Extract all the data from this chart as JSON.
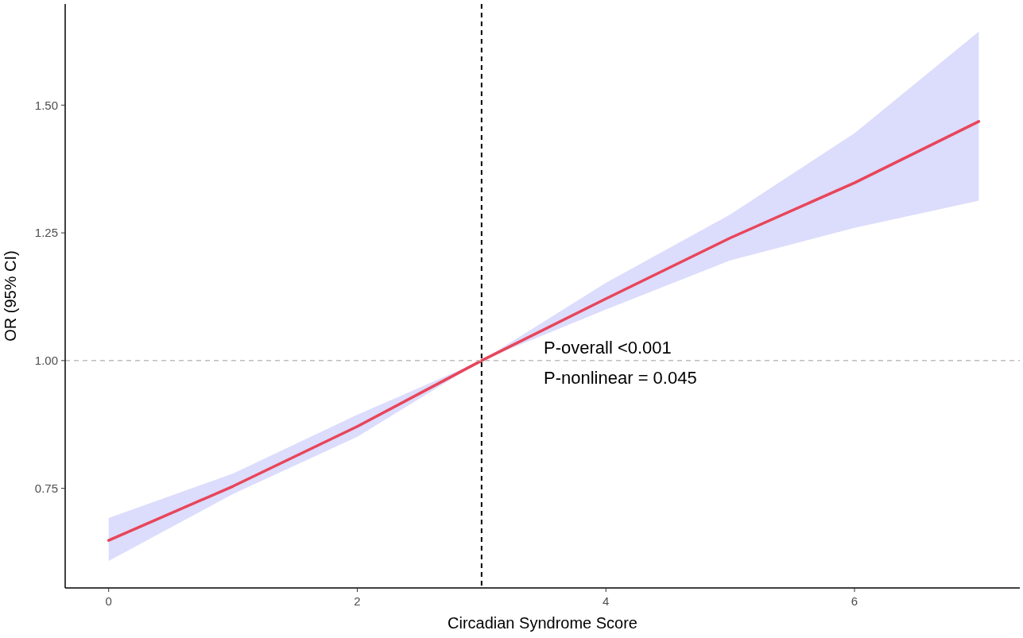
{
  "chart_data": {
    "type": "line",
    "xlabel": "Circadian Syndrome Score",
    "ylabel": "OR (95% CI)",
    "x": [
      0,
      1,
      2,
      3,
      4,
      5,
      6,
      7
    ],
    "series": [
      {
        "color": "#e8455a",
        "values": [
          0.648,
          0.754,
          0.871,
          1.0,
          1.121,
          1.24,
          1.348,
          1.468
        ],
        "lower": [
          0.608,
          0.739,
          0.851,
          1.0,
          1.1,
          1.196,
          1.26,
          1.313
        ],
        "upper": [
          0.692,
          0.779,
          0.894,
          1.0,
          1.152,
          1.286,
          1.445,
          1.644
        ]
      }
    ],
    "xlim": [
      -0.35,
      7.33
    ],
    "ylim": [
      0.555,
      1.698
    ],
    "xticks": [
      0,
      2,
      4,
      6
    ],
    "yticks": [
      {
        "value": 0.75,
        "label": "0.75"
      },
      {
        "value": 1,
        "label": "1.00"
      },
      {
        "value": 1.25,
        "label": "1.25"
      },
      {
        "value": 1.5,
        "label": "1.50"
      }
    ],
    "ref_lines": [
      {
        "axis": "x",
        "value": 3,
        "color": "#000000",
        "line_style": "dashed"
      },
      {
        "axis": "y",
        "value": 1,
        "color": "#bdbdbd",
        "line_style": "dashed"
      }
    ],
    "annotations": [
      "P-overall <0.001",
      "P-nonlinear = 0.045"
    ],
    "grid": false,
    "marker": "none",
    "line_style": "solid"
  }
}
